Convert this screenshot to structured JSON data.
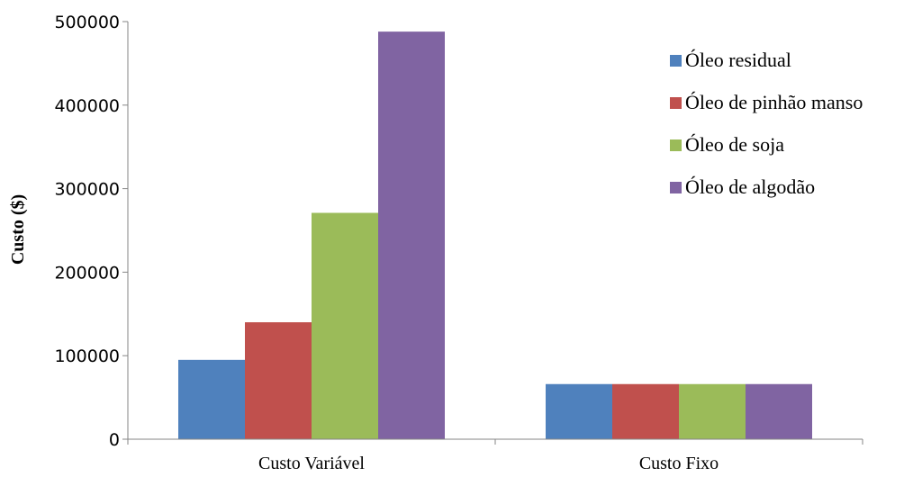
{
  "chart_data": {
    "type": "bar",
    "title": "",
    "xlabel": "",
    "ylabel": "Custo ($)",
    "ylim": [
      0,
      500000
    ],
    "yticks": [
      0,
      100000,
      200000,
      300000,
      400000,
      500000
    ],
    "grid": false,
    "legend_position": "right",
    "categories": [
      "Custo Variável",
      "Custo Fixo"
    ],
    "series": [
      {
        "name": "Óleo residual",
        "color": "#4F81BD",
        "values": [
          95000,
          66000
        ]
      },
      {
        "name": "Óleo de pinhão manso",
        "color": "#C0504D",
        "values": [
          140000,
          66000
        ]
      },
      {
        "name": "Óleo de soja",
        "color": "#9BBB59",
        "values": [
          271000,
          66000
        ]
      },
      {
        "name": "Óleo de algodão",
        "color": "#8064A2",
        "values": [
          488000,
          66000
        ]
      }
    ]
  }
}
